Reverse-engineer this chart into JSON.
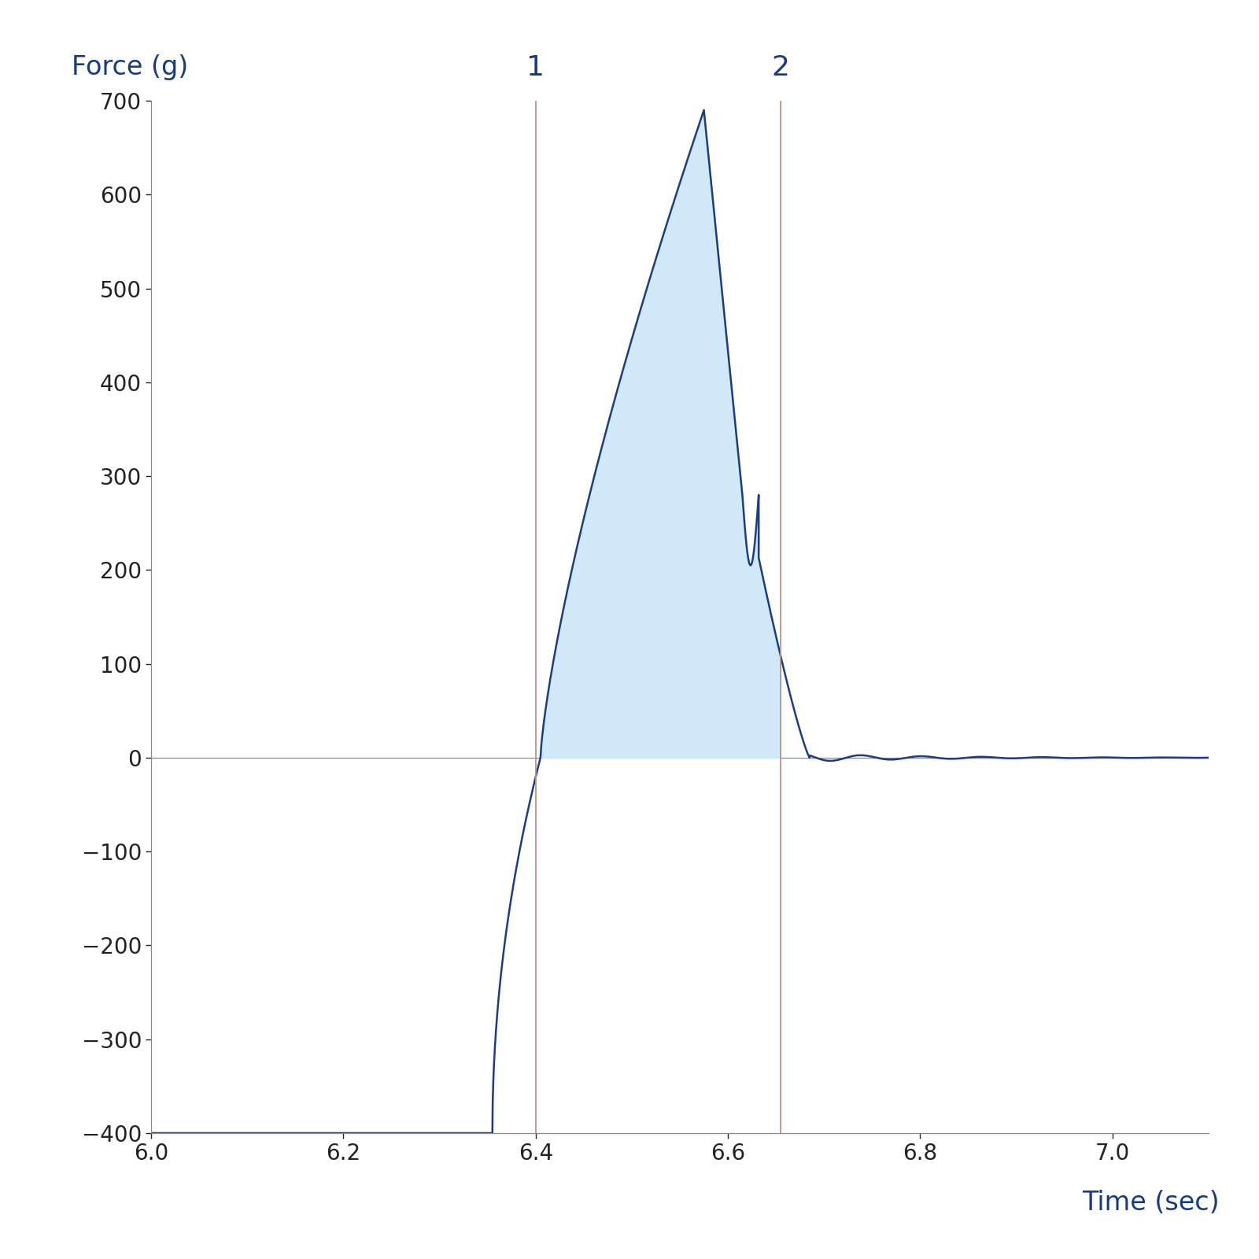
{
  "xlabel": "Time (sec)",
  "ylabel": "Force (g)",
  "xlim": [
    6.0,
    7.1
  ],
  "ylim": [
    -400,
    700
  ],
  "xticks": [
    6.0,
    6.2,
    6.4,
    6.6,
    6.8,
    7.0
  ],
  "yticks": [
    -400,
    -300,
    -200,
    -100,
    0,
    100,
    200,
    300,
    400,
    500,
    600,
    700
  ],
  "line_color": "#1f3d7a",
  "fill_color": "#d0e8f8",
  "vline1_x": 6.4,
  "vline2_x": 6.655,
  "vline_color": "#c09080",
  "vline_label1": "1",
  "vline_label2": "2",
  "label_color": "#1a3a7a",
  "axis_color": "#888888",
  "tick_color": "#222222",
  "background_color": "#ffffff",
  "label_fontsize": 24,
  "tick_fontsize": 20,
  "vline_label_fontsize": 26
}
